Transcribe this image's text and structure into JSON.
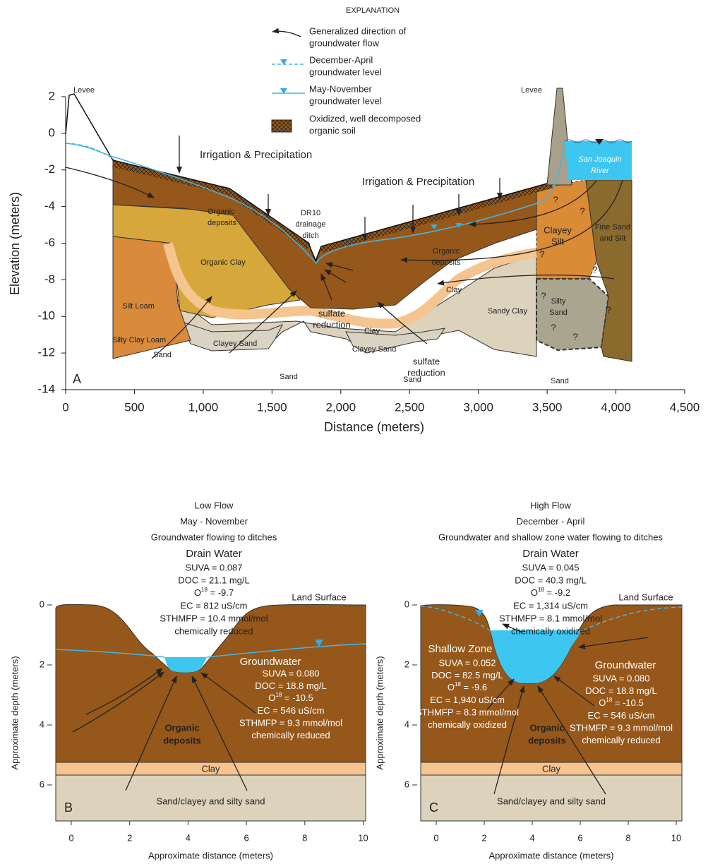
{
  "explanation": {
    "title": "EXPLANATION",
    "items": [
      [
        "Generalized direction of",
        "groundwater flow"
      ],
      [
        "December-April",
        "groundwater level"
      ],
      [
        "May-November",
        "groundwater level"
      ],
      [
        "Oxidized, well decomposed",
        "organic soil"
      ]
    ]
  },
  "panel_a": {
    "letter": "A",
    "ylabel": "Elevation (meters)",
    "xlabel": "Distance (meters)",
    "xticks": [
      0,
      500,
      {
        "value": 1000,
        "label": "1,000"
      },
      {
        "value": 1500,
        "label": "1,500"
      },
      {
        "value": 2000,
        "label": "2,000"
      },
      {
        "value": 2500,
        "label": "2,500"
      },
      {
        "value": 3000,
        "label": "3,000"
      },
      {
        "value": 3500,
        "label": "3,500"
      },
      {
        "value": 4000,
        "label": "4,000"
      },
      {
        "value": 4500,
        "label": "4,500"
      }
    ],
    "yticks": [
      2,
      0,
      -2,
      -4,
      -6,
      -8,
      -10,
      -12,
      -14
    ],
    "labels": {
      "levee_left": "Levee",
      "levee_right": "Levee",
      "irrigation_left": "Irrigation & Precipitation",
      "irrigation_right": "Irrigation & Precipitation",
      "organic_deposits_left": [
        "Organic",
        "deposits"
      ],
      "ditch": [
        "DR10",
        "drainage",
        "ditch"
      ],
      "river": [
        "San Joaquin",
        "River"
      ],
      "clayey_silt": [
        "Clayey",
        "Silt"
      ],
      "fine_sand": [
        "Fine Sand",
        "and Silt"
      ],
      "organic_deposits_right": [
        "Organic",
        "deposits"
      ],
      "organic_clay": "Organic Clay",
      "silt_loam": "Silt Loam",
      "silty_clay_loam": "Silty Clay Loam",
      "clayey_sand_left": "Clayey Sand",
      "sulfate_left": [
        "sulfate",
        "reduction"
      ],
      "clay_right": "Clay",
      "sandy_clay": "Sandy Clay",
      "silty_sand": [
        "Silty",
        "Sand"
      ],
      "clay_center": "Clay",
      "clayey_sand_center": "Clayey Sand",
      "sulfate_right": [
        "sulfate",
        "reduction"
      ],
      "sand": "Sand",
      "question_mark": "?"
    }
  },
  "panel_b": {
    "letter": "B",
    "ylabel": "Approximate depth (meters)",
    "xlabel": "Approximate distance (meters)",
    "xticks": [
      0,
      2,
      4,
      6,
      8,
      10
    ],
    "yticks": [
      0,
      2,
      4,
      6
    ],
    "title": [
      "Low Flow",
      "May - November",
      "Groundwater flowing to ditches"
    ],
    "drain_water": {
      "heading": "Drain Water",
      "lines": [
        "SUVA = 0.087",
        "DOC = 21.1 mg/L",
        {
          "element": "O",
          "superscript": "18",
          "text": " = -9.7"
        },
        "EC =  812 uS/cm",
        "STHMFP = 10.4 mmol/mol",
        "chemically reduced"
      ]
    },
    "groundwater": {
      "heading": "Groundwater",
      "lines": [
        "SUVA = 0.080",
        "DOC = 18.8 mg/L",
        {
          "element": "O",
          "superscript": "18",
          "text": " = -10.5"
        },
        "EC =  546 uS/cm",
        "STHMFP = 9.3 mmol/mol",
        "chemically reduced"
      ]
    },
    "land_surface": "Land Surface",
    "organic_deposits": [
      "Organic",
      "deposits"
    ],
    "clay": "Clay",
    "sand": "Sand/clayey and silty sand"
  },
  "panel_c": {
    "letter": "C",
    "ylabel": "Approximate depth (meters)",
    "xlabel": "Approximate distance (meters)",
    "xticks": [
      0,
      2,
      4,
      6,
      8,
      10
    ],
    "yticks": [
      0,
      2,
      4,
      6
    ],
    "title": [
      "High Flow",
      "December - April",
      "Groundwater and shallow zone water flowing to ditches"
    ],
    "drain_water": {
      "heading": "Drain Water",
      "lines": [
        "SUVA = 0.045",
        "DOC = 40.3 mg/L",
        {
          "element": "O",
          "superscript": "18",
          "text": " = -9.2"
        },
        "EC = 1,314 uS/cm",
        "STHMFP = 8.1 mmol/mol",
        "chemically oxidized"
      ]
    },
    "shallow_zone": {
      "heading": "Shallow Zone",
      "lines": [
        "SUVA = 0.052",
        "DOC = 82.5 mg/L",
        {
          "element": "O",
          "superscript": "18",
          "text": " = -9.6"
        },
        "EC = 1,940 uS/cm",
        "STHMFP = 8.3 mmol/mol",
        "chemically oxidized"
      ]
    },
    "groundwater": {
      "heading": "Groundwater",
      "lines": [
        "SUVA = 0.080",
        "DOC = 18.8 mg/L",
        {
          "element": "O",
          "superscript": "18",
          "text": " = -10.5"
        },
        "EC = 546 uS/cm",
        "STHMFP = 9.3 mmol/mol",
        "chemically reduced"
      ]
    },
    "land_surface": "Land Surface",
    "organic_deposits": [
      "Organic",
      "deposits"
    ],
    "clay": "Clay",
    "sand": "Sand/clayey and silty sand"
  }
}
